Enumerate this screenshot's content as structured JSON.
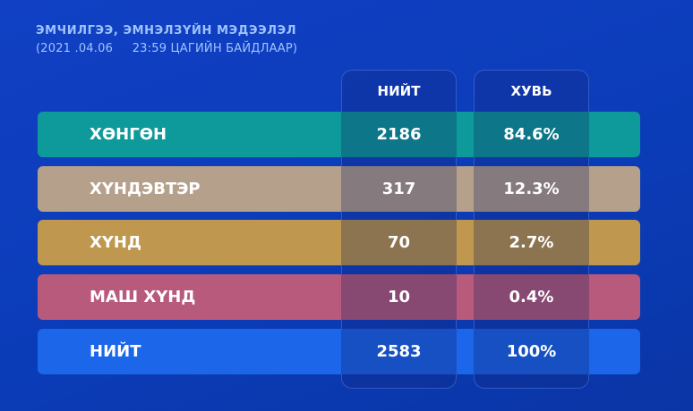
{
  "title": "ЭМЧИЛГЭЭ, ЭМНЭЛЗҮЙН МЭДЭЭЛЭЛ",
  "subtitle": "(2021 .04.06     23:59 ЦАГИЙН БАЙДЛААР)",
  "headers": {
    "total": "НИЙТ",
    "pct": "ХУВЬ"
  },
  "rows": [
    {
      "label": "ХӨНГӨН",
      "total": "2186",
      "pct": "84.6%",
      "color": "#0e9a9a"
    },
    {
      "label": "ХҮНДЭВТЭР",
      "total": "317",
      "pct": "12.3%",
      "color": "#b5a08b"
    },
    {
      "label": "ХҮНД",
      "total": "70",
      "pct": "2.7%",
      "color": "#bf974e"
    },
    {
      "label": "МАШ ХҮНД",
      "total": "10",
      "pct": "0.4%",
      "color": "#b75a7c"
    },
    {
      "label": "НИЙТ",
      "total": "2583",
      "pct": "100%",
      "color": "#1c66ea"
    }
  ]
}
